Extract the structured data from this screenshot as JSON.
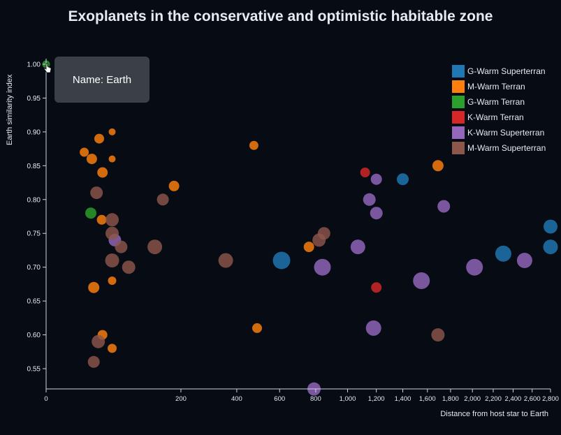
{
  "chart_data": {
    "type": "scatter",
    "title": "Exoplanets in the conservative and optimistic habitable zone",
    "xlabel": "Distance from host star to Earth",
    "ylabel": "Earth similarity index",
    "x_scale": "sqrt",
    "xlim": [
      0,
      2800
    ],
    "ylim": [
      0.52,
      1.01
    ],
    "x_ticks": [
      "0",
      "200",
      "400",
      "600",
      "800",
      "1,000",
      "1,200",
      "1,400",
      "1,600",
      "1,800",
      "2,000",
      "2,200",
      "2,400",
      "2,600",
      "2,800"
    ],
    "y_ticks": [
      "0.55",
      "0.60",
      "0.65",
      "0.70",
      "0.75",
      "0.80",
      "0.85",
      "0.90",
      "0.95",
      "1.00"
    ],
    "legend_position": "top-right",
    "series": [
      {
        "name": "G-Warm Superterran",
        "color": "#1f77b4",
        "points": [
          [
            1400,
            0.83,
            13
          ],
          [
            2800,
            0.76,
            16
          ],
          [
            2800,
            0.73,
            17
          ],
          [
            2300,
            0.72,
            19
          ],
          [
            610,
            0.71,
            21
          ]
        ]
      },
      {
        "name": "M-Warm Terran",
        "color": "#ff7f0e",
        "points": [
          [
            16,
            0.87,
            9
          ],
          [
            23,
            0.86,
            11
          ],
          [
            31,
            0.89,
            10
          ],
          [
            48,
            0.9,
            6
          ],
          [
            48,
            0.86,
            6
          ],
          [
            35,
            0.84,
            11
          ],
          [
            180,
            0.82,
            11
          ],
          [
            34,
            0.77,
            10
          ],
          [
            25,
            0.67,
            12
          ],
          [
            48,
            0.68,
            8
          ],
          [
            35,
            0.6,
            10
          ],
          [
            48,
            0.58,
            9
          ],
          [
            475,
            0.88,
            9
          ],
          [
            760,
            0.73,
            11
          ],
          [
            1690,
            0.85,
            12
          ],
          [
            490,
            0.61,
            10
          ]
        ]
      },
      {
        "name": "G-Warm Terran",
        "color": "#2ca02c",
        "points": [
          [
            0,
            1.0,
            7
          ],
          [
            22,
            0.78,
            12
          ]
        ]
      },
      {
        "name": "K-Warm Terran",
        "color": "#d62728",
        "points": [
          [
            1120,
            0.84,
            10
          ],
          [
            1200,
            0.67,
            11
          ]
        ]
      },
      {
        "name": "K-Warm Superterran",
        "color": "#9467bd",
        "points": [
          [
            1200,
            0.83,
            12
          ],
          [
            1150,
            0.8,
            14
          ],
          [
            1200,
            0.78,
            14
          ],
          [
            1740,
            0.79,
            14
          ],
          [
            1070,
            0.73,
            17
          ],
          [
            840,
            0.7,
            20
          ],
          [
            1180,
            0.61,
            18
          ],
          [
            1550,
            0.68,
            20
          ],
          [
            2020,
            0.7,
            20
          ],
          [
            2520,
            0.71,
            18
          ],
          [
            790,
            0.52,
            15
          ],
          [
            52,
            0.74,
            14
          ]
        ]
      },
      {
        "name": "M-Warm Superterran",
        "color": "#8c564b",
        "points": [
          [
            28,
            0.81,
            14
          ],
          [
            48,
            0.77,
            15
          ],
          [
            48,
            0.75,
            15
          ],
          [
            62,
            0.73,
            14
          ],
          [
            130,
            0.73,
            17
          ],
          [
            48,
            0.71,
            16
          ],
          [
            75,
            0.7,
            15
          ],
          [
            355,
            0.71,
            17
          ],
          [
            150,
            0.8,
            13
          ],
          [
            820,
            0.74,
            15
          ],
          [
            850,
            0.75,
            14
          ],
          [
            30,
            0.59,
            15
          ],
          [
            25,
            0.56,
            13
          ],
          [
            1690,
            0.6,
            15
          ]
        ]
      }
    ]
  },
  "tooltip": {
    "text": "Name: Earth"
  },
  "colors": {
    "background": "#060b14",
    "text": "#e6ebf3",
    "axis": "#cfd6e0"
  }
}
